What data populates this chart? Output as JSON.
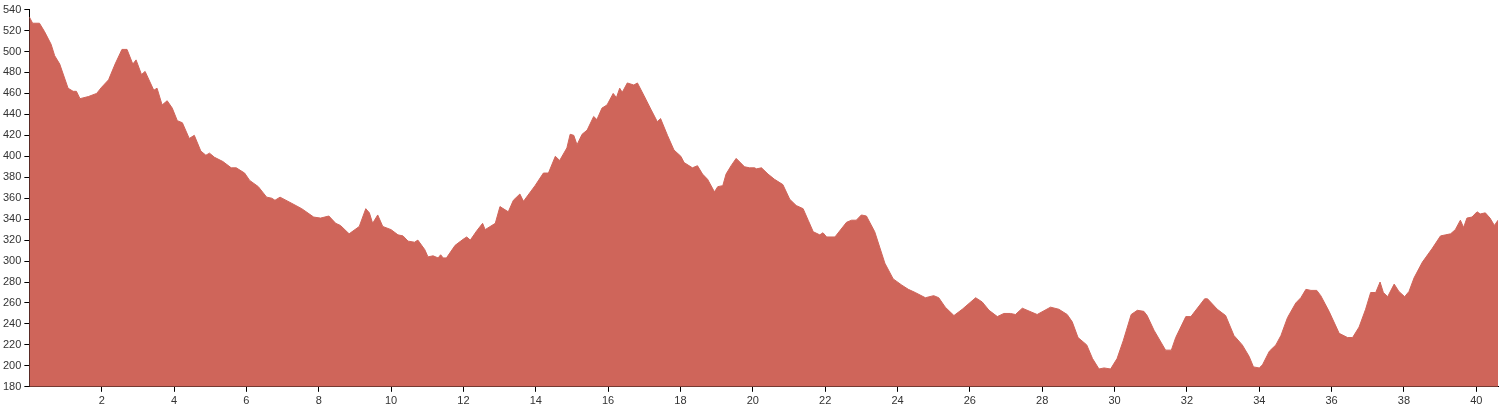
{
  "chart_data": {
    "type": "area",
    "xlim": [
      0,
      40.6
    ],
    "ylim": [
      180,
      540
    ],
    "xticks": [
      2,
      4,
      6,
      8,
      10,
      12,
      14,
      16,
      18,
      20,
      22,
      24,
      26,
      28,
      30,
      32,
      34,
      36,
      38,
      40
    ],
    "yticks": [
      180,
      200,
      220,
      240,
      260,
      280,
      300,
      320,
      340,
      360,
      380,
      400,
      420,
      440,
      460,
      480,
      500,
      520,
      540
    ],
    "marker": "none",
    "series": [
      {
        "color": "#cf655a",
        "x": [
          0,
          0.09,
          0.28,
          0.42,
          0.6,
          0.7,
          0.84,
          1.07,
          1.21,
          1.3,
          1.4,
          1.63,
          1.86,
          2.0,
          2.19,
          2.37,
          2.56,
          2.7,
          2.86,
          2.95,
          3.1,
          3.2,
          3.44,
          3.53,
          3.67,
          3.81,
          3.95,
          4.09,
          4.23,
          4.42,
          4.56,
          4.74,
          4.88,
          4.98,
          5.12,
          5.35,
          5.58,
          5.72,
          5.95,
          6.09,
          6.33,
          6.56,
          6.7,
          6.79,
          6.93,
          7.26,
          7.53,
          7.86,
          8.05,
          8.28,
          8.47,
          8.6,
          8.84,
          9.12,
          9.3,
          9.4,
          9.49,
          9.63,
          9.77,
          10.0,
          10.19,
          10.33,
          10.47,
          10.65,
          10.74,
          10.93,
          11.02,
          11.16,
          11.3,
          11.37,
          11.44,
          11.53,
          11.77,
          12.0,
          12.09,
          12.19,
          12.37,
          12.53,
          12.6,
          12.88,
          13.01,
          13.24,
          13.38,
          13.56,
          13.66,
          13.98,
          14.21,
          14.35,
          14.54,
          14.66,
          14.86,
          14.95,
          15.05,
          15.14,
          15.28,
          15.42,
          15.6,
          15.69,
          15.83,
          15.97,
          16.14,
          16.23,
          16.32,
          16.39,
          16.53,
          16.71,
          16.81,
          16.99,
          17.18,
          17.36,
          17.45,
          17.64,
          17.82,
          18.01,
          18.1,
          18.33,
          18.47,
          18.61,
          18.75,
          18.94,
          19.03,
          19.17,
          19.26,
          19.4,
          19.54,
          19.77,
          19.91,
          20.05,
          20.1,
          20.24,
          20.42,
          20.6,
          20.83,
          21.02,
          21.2,
          21.39,
          21.53,
          21.67,
          21.85,
          21.94,
          22.04,
          22.27,
          22.59,
          22.73,
          22.86,
          23.0,
          23.14,
          23.37,
          23.65,
          23.88,
          24.12,
          24.3,
          24.49,
          24.77,
          25.0,
          25.14,
          25.32,
          25.56,
          25.79,
          26.16,
          26.34,
          26.53,
          26.76,
          26.94,
          27.12,
          27.26,
          27.45,
          27.86,
          28.23,
          28.46,
          28.69,
          28.83,
          28.99,
          29.23,
          29.39,
          29.57,
          29.71,
          29.89,
          30.07,
          30.24,
          30.46,
          30.63,
          30.81,
          30.9,
          31.09,
          31.41,
          31.57,
          31.69,
          31.97,
          32.11,
          32.49,
          32.57,
          32.84,
          33.07,
          33.3,
          33.53,
          33.72,
          33.84,
          34.0,
          34.09,
          34.28,
          34.46,
          34.6,
          34.78,
          35.01,
          35.15,
          35.29,
          35.43,
          35.59,
          35.7,
          35.93,
          36.21,
          36.44,
          36.58,
          36.76,
          36.94,
          37.08,
          37.22,
          37.34,
          37.43,
          37.55,
          37.73,
          37.86,
          38.02,
          38.14,
          38.28,
          38.51,
          38.78,
          39.01,
          39.15,
          39.29,
          39.42,
          39.56,
          39.65,
          39.74,
          39.88,
          40.02,
          40.11,
          40.25,
          40.38,
          40.5,
          40.6
        ],
        "values": [
          533,
          527,
          527,
          519,
          507,
          496,
          488,
          465,
          462,
          462,
          455,
          457,
          460,
          466,
          473,
          488,
          502,
          502,
          488,
          492,
          478,
          481,
          463,
          465,
          449,
          453,
          446,
          434,
          432,
          417,
          420,
          405,
          401,
          403,
          399,
          395,
          389,
          389,
          384,
          377,
          371,
          361,
          360,
          358,
          361,
          355,
          350,
          342,
          341,
          343,
          336,
          334,
          326,
          333,
          350,
          346,
          336,
          344,
          333,
          330,
          325,
          324,
          319,
          318,
          320,
          311,
          304,
          305,
          303,
          306,
          303,
          303,
          315,
          321,
          323,
          320,
          329,
          336,
          330,
          336,
          352,
          347,
          358,
          364,
          357,
          372,
          384,
          384,
          400,
          396,
          408,
          421,
          420,
          411,
          421,
          425,
          438,
          435,
          446,
          449,
          460,
          456,
          465,
          461,
          470,
          468,
          470,
          458,
          445,
          433,
          436,
          420,
          406,
          400,
          394,
          389,
          391,
          383,
          378,
          366,
          371,
          372,
          383,
          391,
          398,
          390,
          389,
          389,
          388,
          389,
          383,
          378,
          373,
          359,
          353,
          350,
          339,
          328,
          325,
          327,
          323,
          323,
          337,
          339,
          339,
          344,
          343,
          328,
          298,
          283,
          277,
          273,
          270,
          265,
          267,
          265,
          256,
          248,
          254,
          265,
          261,
          253,
          247,
          250,
          250,
          249,
          255,
          249,
          256,
          254,
          249,
          242,
          227,
          220,
          207,
          197,
          198,
          197,
          207,
          224,
          249,
          253,
          252,
          248,
          234,
          215,
          215,
          227,
          247,
          247,
          264,
          264,
          254,
          248,
          229,
          220,
          209,
          199,
          198,
          201,
          214,
          220,
          229,
          246,
          260,
          265,
          273,
          272,
          272,
          267,
          252,
          231,
          227,
          227,
          237,
          254,
          270,
          270,
          280,
          270,
          266,
          278,
          271,
          266,
          271,
          284,
          299,
          312,
          324,
          325,
          326,
          330,
          339,
          332,
          341,
          342,
          347,
          345,
          346,
          341,
          334,
          339
        ]
      }
    ]
  }
}
